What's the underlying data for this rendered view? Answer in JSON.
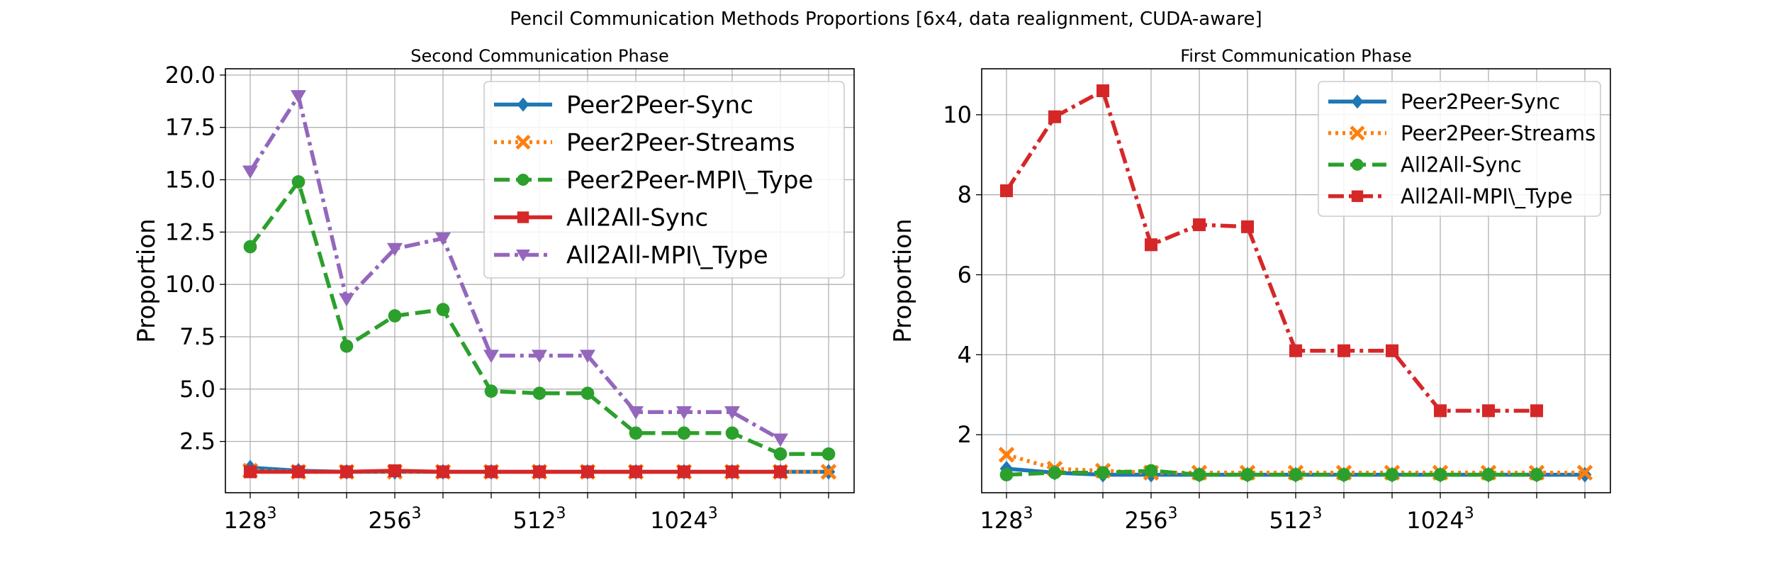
{
  "figure": {
    "title": "Pencil Communication Methods Proportions [6x4, data realignment, CUDA-aware]"
  },
  "chart_data": [
    {
      "type": "line",
      "title": "Second Communication Phase",
      "xlabel": "",
      "ylabel": "Proportion",
      "x_count": 13,
      "xticks": [
        {
          "index": 0,
          "label": "128",
          "sup": "3"
        },
        {
          "index": 3,
          "label": "256",
          "sup": "3"
        },
        {
          "index": 6,
          "label": "512",
          "sup": "3"
        },
        {
          "index": 9,
          "label": "1024",
          "sup": "3"
        }
      ],
      "ylim": [
        0.05,
        20.3
      ],
      "yticks": [
        2.5,
        5.0,
        7.5,
        10.0,
        12.5,
        15.0,
        17.5,
        20.0
      ],
      "ytick_labels": [
        "2.5",
        "5.0",
        "7.5",
        "10.0",
        "12.5",
        "15.0",
        "17.5",
        "20.0"
      ],
      "grid": true,
      "legend": "top-right",
      "series": [
        {
          "name": "Peer2Peer-Sync",
          "color": "#1f77b4",
          "dash": "solid",
          "marker": "diamond",
          "values": [
            1.25,
            1.1,
            1.05,
            1.05,
            1.05,
            1.05,
            1.05,
            1.05,
            1.05,
            1.05,
            1.05,
            1.05,
            1.05
          ]
        },
        {
          "name": "Peer2Peer-Streams",
          "color": "#ff7f0e",
          "dash": "dotted",
          "marker": "x",
          "values": [
            1.1,
            1.05,
            1.05,
            1.05,
            1.05,
            1.05,
            1.05,
            1.05,
            1.05,
            1.05,
            1.05,
            1.05,
            1.05
          ]
        },
        {
          "name": "Peer2Peer-MPI\\_Type",
          "color": "#2ca02c",
          "dash": "dashed",
          "marker": "circle",
          "values": [
            11.8,
            14.9,
            7.05,
            8.5,
            8.8,
            4.9,
            4.8,
            4.8,
            2.9,
            2.9,
            2.9,
            1.9,
            1.9
          ]
        },
        {
          "name": "All2All-Sync",
          "color": "#d62728",
          "dash": "solid",
          "marker": "square",
          "values": [
            1.05,
            1.05,
            1.05,
            1.1,
            1.05,
            1.05,
            1.05,
            1.05,
            1.05,
            1.05,
            1.05,
            1.05,
            null
          ]
        },
        {
          "name": "All2All-MPI\\_Type",
          "color": "#9467bd",
          "dash": "dashdot",
          "marker": "triangle-down",
          "values": [
            15.4,
            19.0,
            9.3,
            11.7,
            12.2,
            6.6,
            6.6,
            6.6,
            3.9,
            3.9,
            3.9,
            2.6,
            null
          ]
        }
      ]
    },
    {
      "type": "line",
      "title": "First Communication Phase",
      "xlabel": "",
      "ylabel": "Proportion",
      "x_count": 13,
      "xticks": [
        {
          "index": 0,
          "label": "128",
          "sup": "3"
        },
        {
          "index": 3,
          "label": "256",
          "sup": "3"
        },
        {
          "index": 6,
          "label": "512",
          "sup": "3"
        },
        {
          "index": 9,
          "label": "1024",
          "sup": "3"
        }
      ],
      "ylim": [
        0.55,
        11.15
      ],
      "yticks": [
        2,
        4,
        6,
        8,
        10
      ],
      "ytick_labels": [
        "2",
        "4",
        "6",
        "8",
        "10"
      ],
      "grid": true,
      "legend": "top-right",
      "series": [
        {
          "name": "Peer2Peer-Sync",
          "color": "#1f77b4",
          "dash": "solid",
          "marker": "diamond",
          "values": [
            1.15,
            1.05,
            1.0,
            1.0,
            1.0,
            1.0,
            1.0,
            1.0,
            1.0,
            1.0,
            1.0,
            1.0,
            1.0
          ]
        },
        {
          "name": "Peer2Peer-Streams",
          "color": "#ff7f0e",
          "dash": "dotted",
          "marker": "x",
          "values": [
            1.5,
            1.15,
            1.1,
            1.05,
            1.05,
            1.05,
            1.05,
            1.05,
            1.05,
            1.05,
            1.05,
            1.05,
            1.05
          ]
        },
        {
          "name": "All2All-Sync",
          "color": "#2ca02c",
          "dash": "dashed",
          "marker": "circle",
          "values": [
            1.0,
            1.05,
            1.05,
            1.1,
            1.0,
            1.0,
            1.0,
            1.0,
            1.0,
            1.0,
            1.0,
            1.0,
            null
          ]
        },
        {
          "name": "All2All-MPI\\_Type",
          "color": "#d62728",
          "dash": "dashdot",
          "marker": "square",
          "values": [
            8.1,
            9.95,
            10.6,
            6.75,
            7.25,
            7.2,
            4.1,
            4.1,
            4.1,
            2.6,
            2.6,
            2.6,
            null
          ]
        }
      ]
    }
  ]
}
